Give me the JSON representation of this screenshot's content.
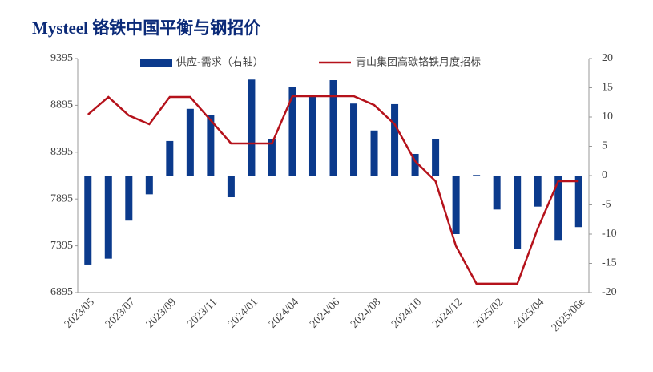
{
  "chart_data": {
    "type": "bar_line",
    "title": "Mysteel 铬铁中国平衡与钢招价",
    "categories": [
      "2023/05",
      null,
      "2023/07",
      null,
      "2023/09",
      null,
      "2023/11",
      null,
      "2024/01",
      null,
      "2024/04",
      null,
      "2024/06",
      null,
      "2024/08",
      null,
      "2024/10",
      null,
      "2024/12",
      null,
      "2025/02",
      null,
      "2025/04",
      null,
      "2025/06e"
    ],
    "series": [
      {
        "name": "供应-需求（右轴）",
        "type": "bar",
        "axis": "y2",
        "color": "#0b3a8c",
        "values": [
          -15.2,
          -14.2,
          -7.7,
          -3.2,
          5.9,
          11.4,
          10.3,
          -3.7,
          16.4,
          6.2,
          15.2,
          13.8,
          16.3,
          12.3,
          7.7,
          12.2,
          3.7,
          6.2,
          -10.0,
          0.1,
          -5.8,
          -12.6,
          -5.3,
          -11.0,
          -8.8
        ]
      },
      {
        "name": "青山集团高碳铬铁月度招标",
        "type": "line",
        "color": "#b5121b",
        "values": [
          8796,
          8984,
          8787,
          8693,
          8984,
          8984,
          8736,
          8488,
          8488,
          8488,
          8993,
          8993,
          8993,
          8993,
          8898,
          8693,
          8299,
          8085,
          7392,
          6990,
          6990,
          6990,
          7580,
          8085,
          8085
        ]
      }
    ],
    "ylim": [
      6895,
      9395
    ],
    "yticks": [
      6895,
      7395,
      7895,
      8395,
      8895,
      9395
    ],
    "y2lim": [
      -20,
      20
    ],
    "y2ticks": [
      -20,
      -15,
      -10,
      -5,
      0,
      5,
      10,
      15,
      20
    ]
  }
}
